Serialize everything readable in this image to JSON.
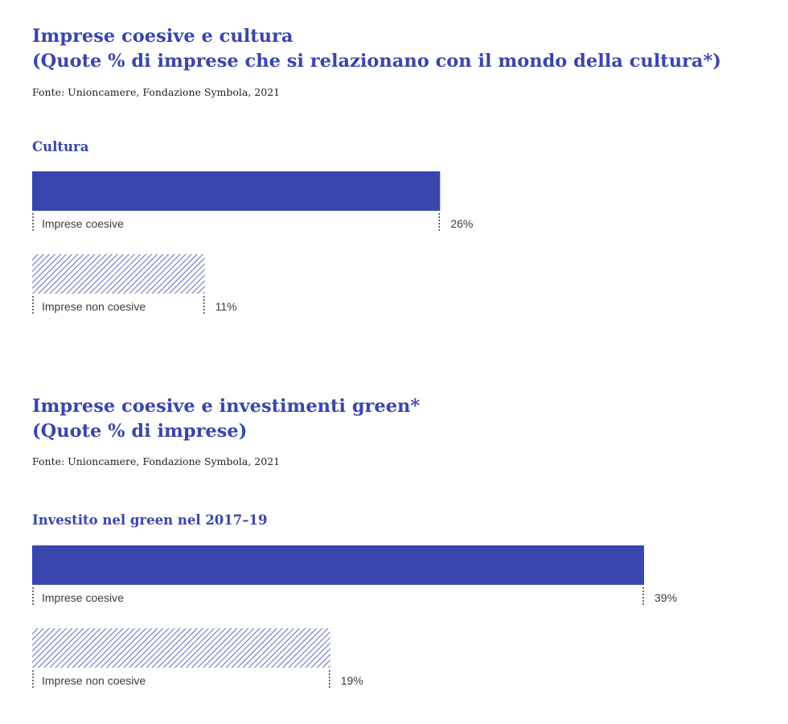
{
  "chart_data": [
    {
      "type": "bar",
      "title": "Imprese coesive e cultura",
      "title_line2": "(Quote % di imprese che si relazionano con il mondo della cultura*)",
      "source": "Fonte: Unioncamere, Fondazione Symbola, 2021",
      "subtitle": "Cultura",
      "categories": [
        "Imprese coesive",
        "Imprese non coesive"
      ],
      "values": [
        26,
        11
      ],
      "value_labels": [
        "26%",
        "11%"
      ],
      "unit": "%",
      "ylim": [
        0,
        39
      ],
      "colors": {
        "coesive": "#3a45ae",
        "non_coesive_hatch": "#3a45ae"
      }
    },
    {
      "type": "bar",
      "title": "Imprese coesive e investimenti green*",
      "title_line2": "(Quote % di imprese)",
      "source": "Fonte: Unioncamere, Fondazione Symbola, 2021",
      "subtitle": "Investito nel green nel 2017–19",
      "categories": [
        "Imprese coesive",
        "Imprese non coesive"
      ],
      "values": [
        39,
        19
      ],
      "value_labels": [
        "39%",
        "19%"
      ],
      "unit": "%",
      "ylim": [
        0,
        39
      ],
      "colors": {
        "coesive": "#3a45ae",
        "non_coesive_hatch": "#3a45ae"
      }
    }
  ]
}
